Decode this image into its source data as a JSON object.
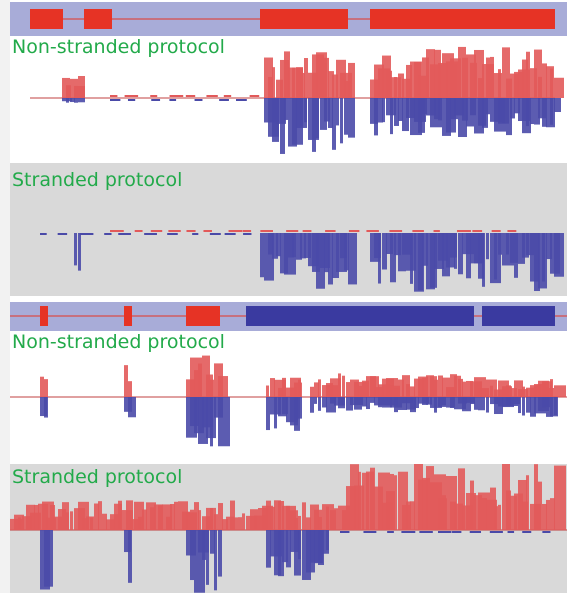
{
  "labels": {
    "non_stranded": "Non-stranded protocol",
    "stranded": "Stranded protocol"
  },
  "colors": {
    "track_bar": "#a8acd8",
    "exon_red": "#e63325",
    "exon_blue": "#3a3aa0",
    "read_forward": "#e25a5a",
    "read_reverse": "#4a4aa8",
    "label_text": "#22aa4a",
    "stranded_background": "#d9d9d9"
  },
  "locus_1": {
    "gene_strand": "forward",
    "non_stranded_label": "Non-stranded protocol",
    "stranded_label": "Stranded protocol"
  },
  "locus_2": {
    "gene_strand": "forward + reverse",
    "non_stranded_label": "Non-stranded protocol",
    "stranded_label": "Stranded protocol"
  }
}
